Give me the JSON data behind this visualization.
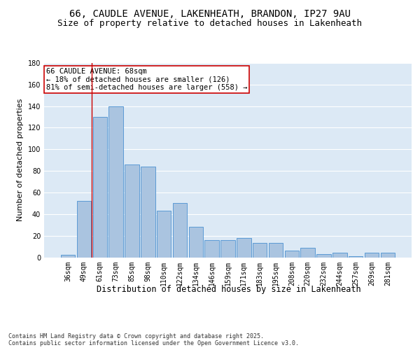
{
  "title": "66, CAUDLE AVENUE, LAKENHEATH, BRANDON, IP27 9AU",
  "subtitle": "Size of property relative to detached houses in Lakenheath",
  "xlabel": "Distribution of detached houses by size in Lakenheath",
  "ylabel": "Number of detached properties",
  "categories": [
    "36sqm",
    "49sqm",
    "61sqm",
    "73sqm",
    "85sqm",
    "98sqm",
    "110sqm",
    "122sqm",
    "134sqm",
    "146sqm",
    "159sqm",
    "171sqm",
    "183sqm",
    "195sqm",
    "208sqm",
    "220sqm",
    "232sqm",
    "244sqm",
    "257sqm",
    "269sqm",
    "281sqm"
  ],
  "values": [
    2,
    52,
    130,
    140,
    86,
    84,
    43,
    50,
    28,
    16,
    16,
    18,
    13,
    13,
    6,
    9,
    3,
    4,
    1,
    4,
    4
  ],
  "bar_color": "#aac4e0",
  "bar_edge_color": "#5b9bd5",
  "background_color": "#dce9f5",
  "grid_color": "#ffffff",
  "annotation_text": "66 CAUDLE AVENUE: 68sqm\n← 18% of detached houses are smaller (126)\n81% of semi-detached houses are larger (558) →",
  "annotation_box_color": "#ffffff",
  "annotation_box_edge": "#cc0000",
  "vline_x": 1.5,
  "vline_color": "#cc0000",
  "ylim": [
    0,
    180
  ],
  "yticks": [
    0,
    20,
    40,
    60,
    80,
    100,
    120,
    140,
    160,
    180
  ],
  "footer": "Contains HM Land Registry data © Crown copyright and database right 2025.\nContains public sector information licensed under the Open Government Licence v3.0.",
  "title_fontsize": 10,
  "subtitle_fontsize": 9,
  "ylabel_fontsize": 8,
  "xlabel_fontsize": 8.5,
  "tick_fontsize": 7,
  "annotation_fontsize": 7.5,
  "footer_fontsize": 6
}
